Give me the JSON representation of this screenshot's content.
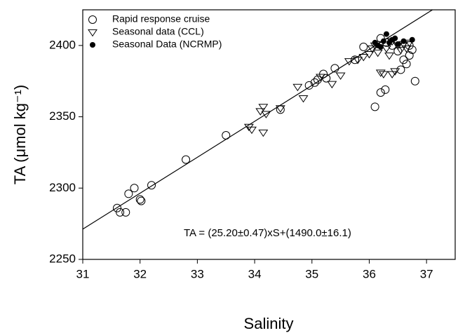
{
  "chart_data": {
    "type": "scatter",
    "x_label": "Salinity",
    "y_label": "TA (μmol kg⁻¹)",
    "xlim": [
      31,
      37.5
    ],
    "xticks": [
      31,
      32,
      33,
      34,
      35,
      36,
      37
    ],
    "ylim": [
      2250,
      2425
    ],
    "yticks": [
      2250,
      2300,
      2350,
      2400
    ],
    "legend": "top-left",
    "series": [
      {
        "name": "Rapid response cruise",
        "color": "#000000",
        "marker": "open-circle",
        "x": [
          31.6,
          31.65,
          31.75,
          31.8,
          31.9,
          32.0,
          32.02,
          32.2,
          32.8,
          33.5,
          34.45,
          34.95,
          35.05,
          35.1,
          35.2,
          35.25,
          35.4,
          35.75,
          35.9,
          36.1,
          36.2,
          36.28,
          36.55,
          36.65,
          36.7,
          36.75,
          36.8,
          36.6,
          36.5,
          36.4,
          36.3,
          36.7,
          36.2
        ],
        "values": [
          2286,
          2283,
          2283,
          2296,
          2300,
          2292,
          2291,
          2302,
          2320,
          2337,
          2355,
          2372,
          2374,
          2376,
          2380,
          2377,
          2384,
          2390,
          2399,
          2357,
          2367,
          2369,
          2383,
          2387,
          2393,
          2397,
          2375,
          2390,
          2396,
          2400,
          2402,
          2400,
          2405
        ]
      },
      {
        "name": "Seasonal data (CCL)",
        "color": "#000000",
        "marker": "open-triangle-down",
        "x": [
          33.9,
          33.95,
          34.1,
          34.15,
          34.15,
          34.2,
          34.45,
          34.75,
          34.85,
          35.15,
          35.35,
          35.5,
          35.65,
          35.8,
          35.9,
          36.0,
          36.05,
          36.1,
          36.15,
          36.2,
          36.25,
          36.3,
          36.35,
          36.4,
          36.45,
          36.5,
          36.55,
          36.6,
          36.65,
          36.7,
          36.2,
          36.4
        ],
        "values": [
          2343,
          2341,
          2354,
          2357,
          2339,
          2352,
          2356,
          2371,
          2363,
          2378,
          2373,
          2379,
          2389,
          2390,
          2392,
          2394,
          2398,
          2400,
          2395,
          2381,
          2380,
          2398,
          2393,
          2380,
          2382,
          2400,
          2397,
          2401,
          2398,
          2402,
          2401,
          2403
        ]
      },
      {
        "name": "Seasonal Data (NCRMP)",
        "color": "#000000",
        "marker": "filled-circle",
        "x": [
          36.1,
          36.15,
          36.2,
          36.25,
          36.3,
          36.35,
          36.4,
          36.45,
          36.5,
          36.6,
          36.75
        ],
        "values": [
          2402,
          2400,
          2399,
          2403,
          2408,
          2402,
          2404,
          2405,
          2401,
          2403,
          2404
        ]
      }
    ],
    "regression": {
      "label": "TA = (25.20±0.47)xS+(1490.0±16.1)",
      "x": [
        31,
        37.5
      ],
      "values": [
        2271.2,
        2435.0
      ],
      "color": "#000000"
    }
  }
}
